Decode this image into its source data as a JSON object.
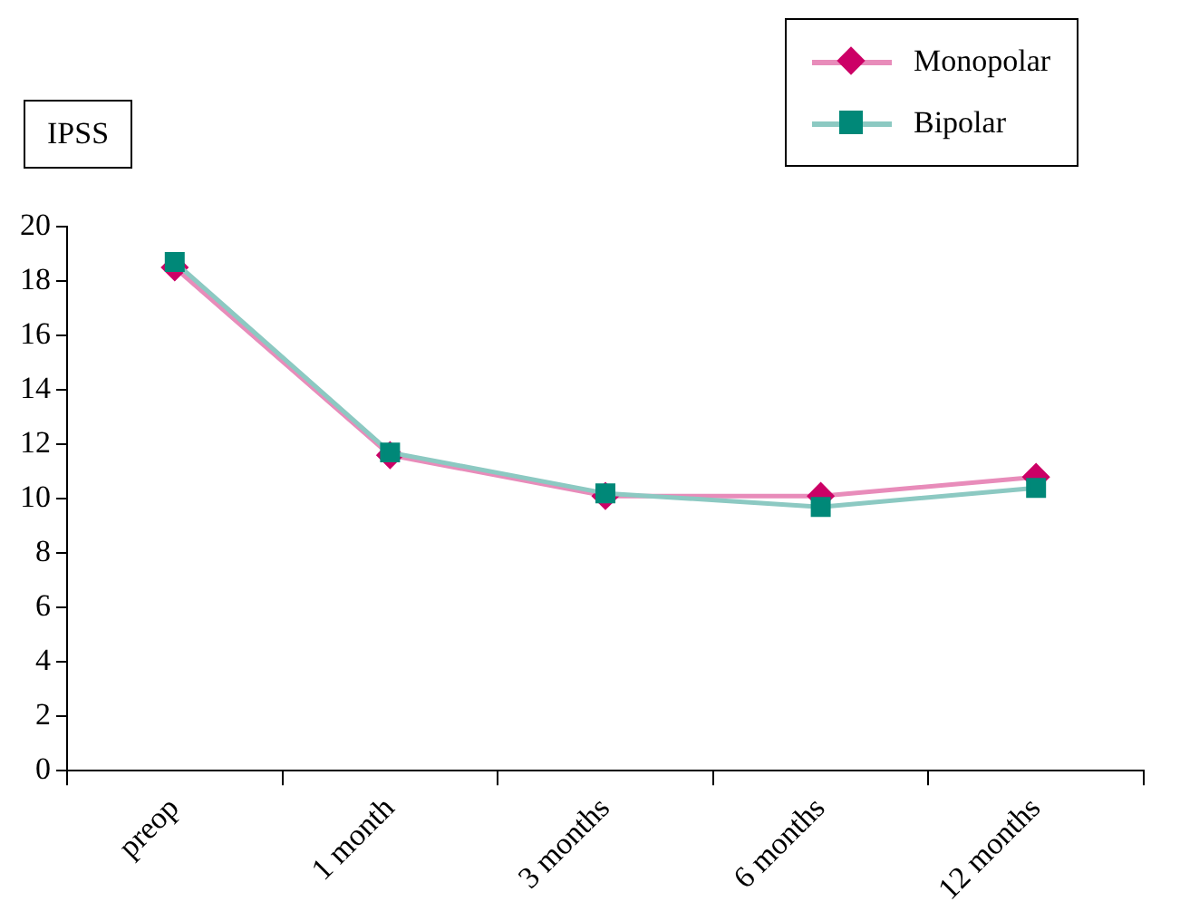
{
  "chart_data": {
    "type": "line",
    "ylabel": "IPSS",
    "categories": [
      "preop",
      "1 month",
      "3 months",
      "6 months",
      "12 months"
    ],
    "series": [
      {
        "name": "Monopolar",
        "color": "#cc0066",
        "marker": "diamond",
        "values": [
          18.5,
          11.6,
          10.1,
          10.1,
          10.8
        ]
      },
      {
        "name": "Bipolar",
        "color": "#008878",
        "marker": "square",
        "values": [
          18.7,
          11.7,
          10.2,
          9.7,
          10.4
        ]
      }
    ],
    "ylim": [
      0,
      20
    ],
    "yticks": [
      0,
      2,
      4,
      6,
      8,
      10,
      12,
      14,
      16,
      18,
      20
    ],
    "grid": false,
    "legend": "top right",
    "line_style": "solid"
  }
}
